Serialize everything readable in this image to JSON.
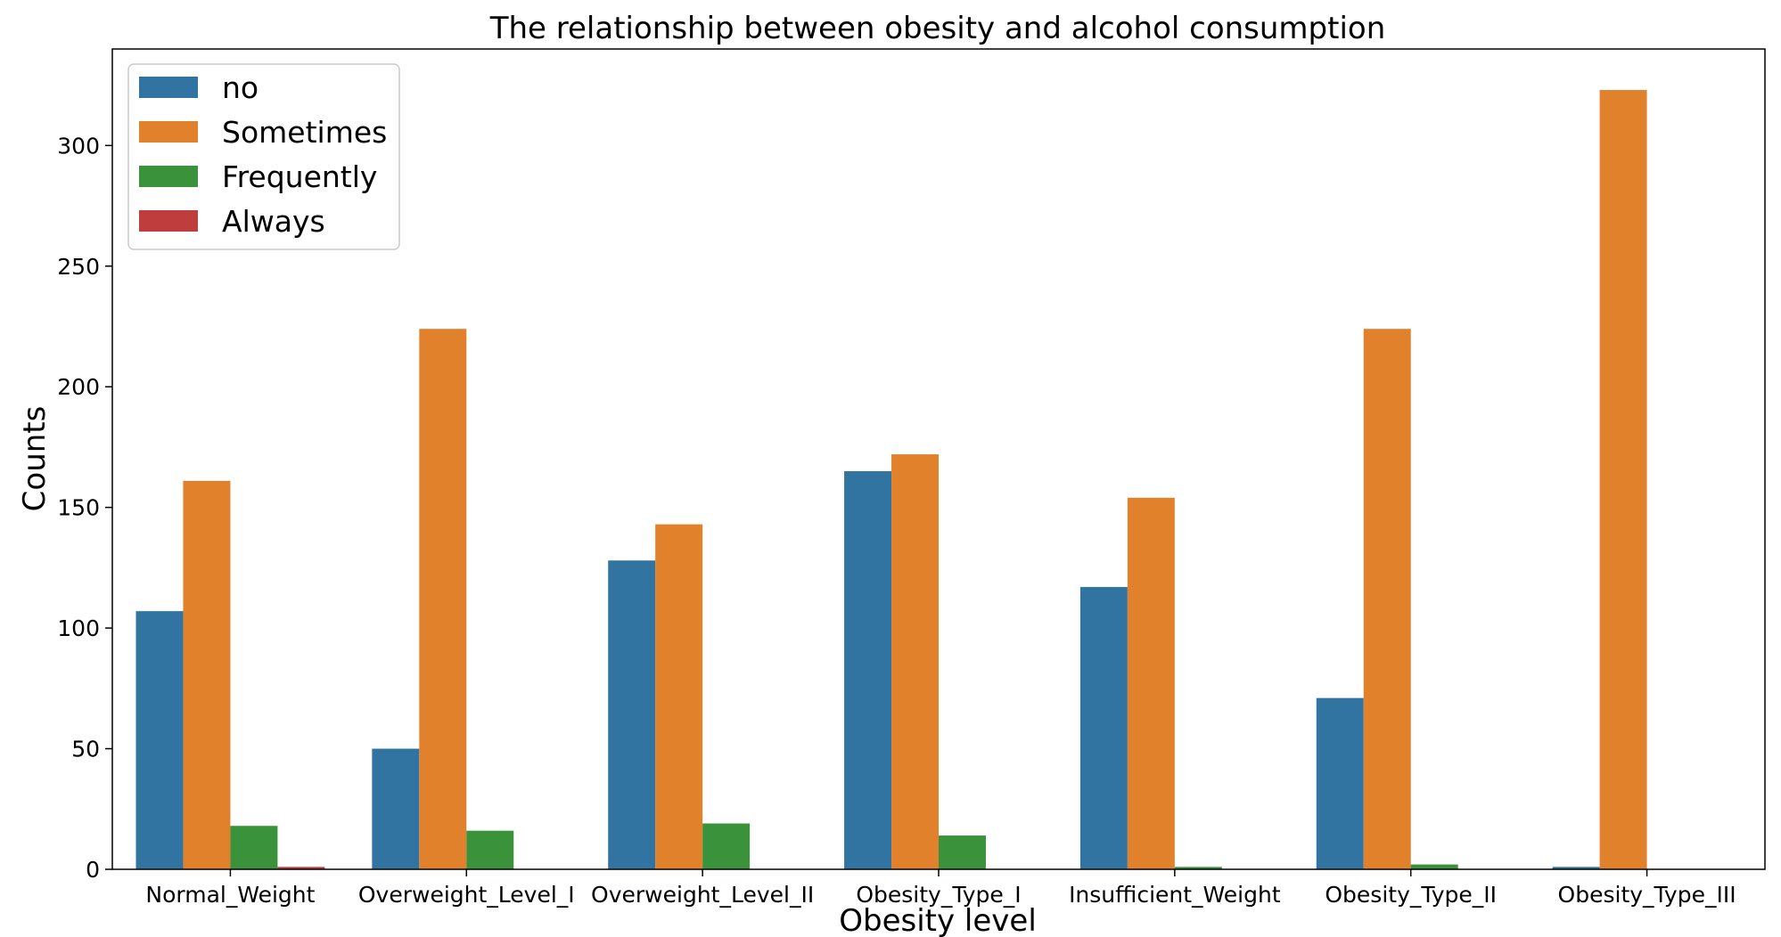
{
  "chart_data": {
    "type": "bar",
    "title": "The relationship between obesity and alcohol consumption",
    "xlabel": "Obesity level",
    "ylabel": "Counts",
    "categories": [
      "Normal_Weight",
      "Overweight_Level_I",
      "Overweight_Level_II",
      "Obesity_Type_I",
      "Insufficient_Weight",
      "Obesity_Type_II",
      "Obesity_Type_III"
    ],
    "series": [
      {
        "name": "no",
        "color": "#3274a1",
        "values": [
          107,
          50,
          128,
          165,
          117,
          71,
          1
        ]
      },
      {
        "name": "Sometimes",
        "color": "#e1812c",
        "values": [
          161,
          224,
          143,
          172,
          154,
          224,
          323
        ]
      },
      {
        "name": "Frequently",
        "color": "#3a923a",
        "values": [
          18,
          16,
          19,
          14,
          1,
          2,
          0
        ]
      },
      {
        "name": "Always",
        "color": "#c03d3e",
        "values": [
          1,
          0,
          0,
          0,
          0,
          0,
          0
        ]
      }
    ],
    "ylim": [
      0,
      340
    ],
    "yticks": [
      0,
      50,
      100,
      150,
      200,
      250,
      300
    ],
    "grid": false,
    "legend_position": "top-left"
  }
}
